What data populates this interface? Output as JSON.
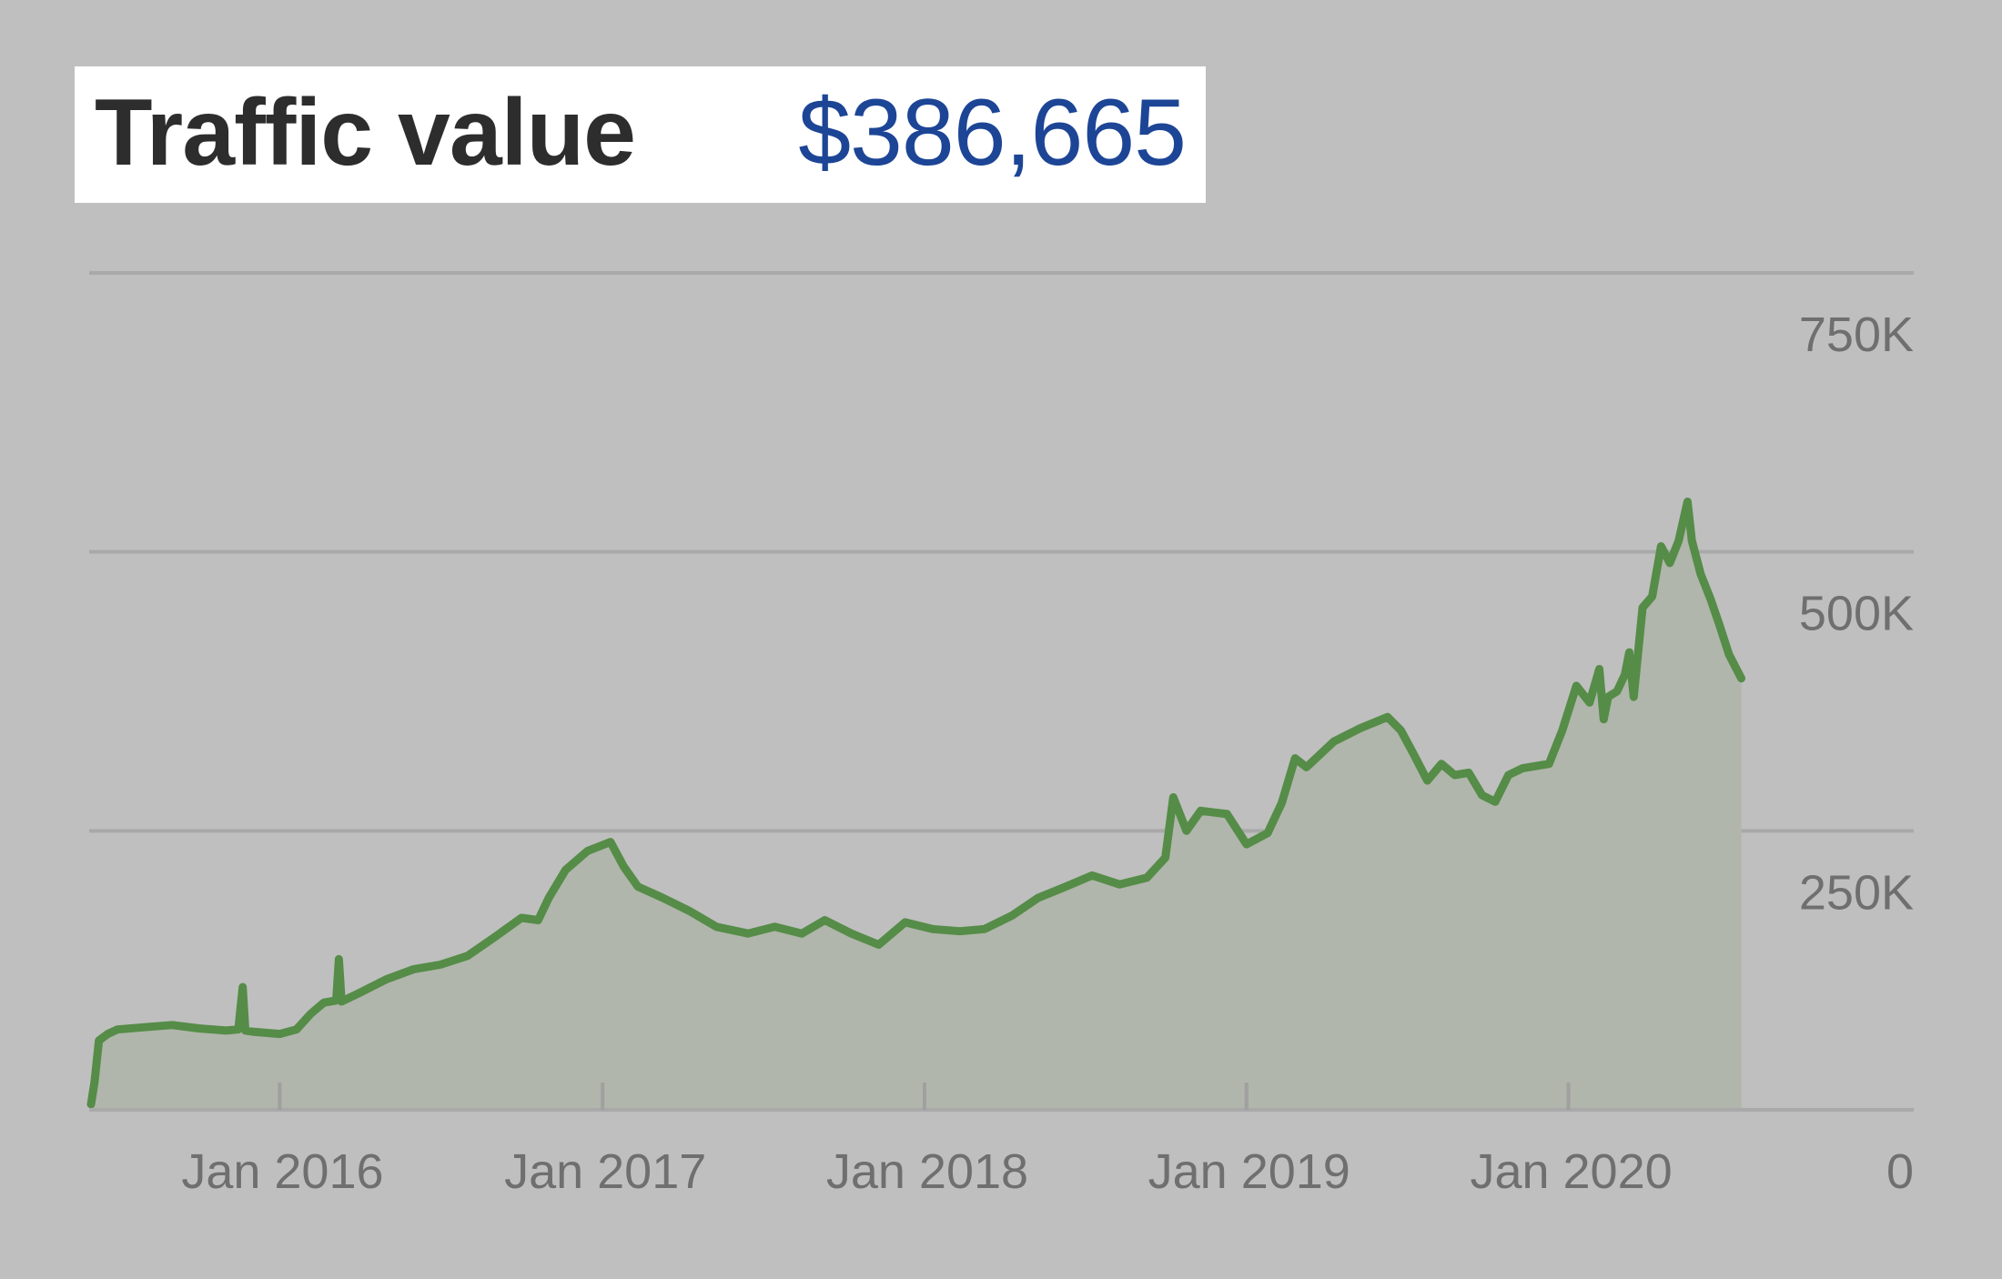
{
  "headline": {
    "label": "Traffic value",
    "value": "$386,665"
  },
  "colors": {
    "background": "#bfbfbf",
    "line": "#558c47",
    "area": "#b0b6ab",
    "headline_value": "#1d4596",
    "headline_label": "#2d2d2d",
    "grid": "#a9a9a9",
    "tick_label": "#6f6f6f"
  },
  "chart_data": {
    "type": "area",
    "title": "Traffic value",
    "xlabel": "",
    "ylabel": "",
    "grid": true,
    "legend": "none",
    "ylim": [
      0,
      750000
    ],
    "xlim": [
      "2015-06-01",
      "2020-08-01"
    ],
    "x_ticks": [
      {
        "date": "2016-01-01",
        "label": "Jan 2016"
      },
      {
        "date": "2017-01-01",
        "label": "Jan 2017"
      },
      {
        "date": "2018-01-01",
        "label": "Jan 2018"
      },
      {
        "date": "2019-01-01",
        "label": "Jan 2019"
      },
      {
        "date": "2020-01-01",
        "label": "Jan 2020"
      }
    ],
    "y_ticks": [
      {
        "value": 750000,
        "label": "750K"
      },
      {
        "value": 500000,
        "label": "500K"
      },
      {
        "value": 250000,
        "label": "250K"
      },
      {
        "value": 0,
        "label": "0"
      }
    ],
    "series": [
      {
        "name": "",
        "points": [
          [
            "2015-06-01",
            5000
          ],
          [
            "2015-06-05",
            25000
          ],
          [
            "2015-06-10",
            62000
          ],
          [
            "2015-06-20",
            68000
          ],
          [
            "2015-07-01",
            72000
          ],
          [
            "2015-08-01",
            74000
          ],
          [
            "2015-09-01",
            76000
          ],
          [
            "2015-10-01",
            73000
          ],
          [
            "2015-11-01",
            71000
          ],
          [
            "2015-11-15",
            72000
          ],
          [
            "2015-11-20",
            110000
          ],
          [
            "2015-11-23",
            71000
          ],
          [
            "2015-12-01",
            70000
          ],
          [
            "2016-01-01",
            68000
          ],
          [
            "2016-01-20",
            72000
          ],
          [
            "2016-02-05",
            86000
          ],
          [
            "2016-02-20",
            96000
          ],
          [
            "2016-03-05",
            98000
          ],
          [
            "2016-03-08",
            135000
          ],
          [
            "2016-03-11",
            97000
          ],
          [
            "2016-04-01",
            105000
          ],
          [
            "2016-05-01",
            117000
          ],
          [
            "2016-06-01",
            126000
          ],
          [
            "2016-07-01",
            130000
          ],
          [
            "2016-08-01",
            138000
          ],
          [
            "2016-09-01",
            155000
          ],
          [
            "2016-10-01",
            172000
          ],
          [
            "2016-10-20",
            170000
          ],
          [
            "2016-11-01",
            190000
          ],
          [
            "2016-11-20",
            215000
          ],
          [
            "2016-12-15",
            232000
          ],
          [
            "2017-01-10",
            240000
          ],
          [
            "2017-01-25",
            218000
          ],
          [
            "2017-02-10",
            200000
          ],
          [
            "2017-03-10",
            190000
          ],
          [
            "2017-04-10",
            178000
          ],
          [
            "2017-05-10",
            164000
          ],
          [
            "2017-06-15",
            158000
          ],
          [
            "2017-07-15",
            164000
          ],
          [
            "2017-08-15",
            158000
          ],
          [
            "2017-09-10",
            170000
          ],
          [
            "2017-10-10",
            158000
          ],
          [
            "2017-11-10",
            148000
          ],
          [
            "2017-12-10",
            168000
          ],
          [
            "2018-01-10",
            162000
          ],
          [
            "2018-02-10",
            160000
          ],
          [
            "2018-03-10",
            162000
          ],
          [
            "2018-04-10",
            174000
          ],
          [
            "2018-05-10",
            190000
          ],
          [
            "2018-06-10",
            200000
          ],
          [
            "2018-07-10",
            210000
          ],
          [
            "2018-08-10",
            202000
          ],
          [
            "2018-09-10",
            208000
          ],
          [
            "2018-10-01",
            226000
          ],
          [
            "2018-10-10",
            280000
          ],
          [
            "2018-10-25",
            250000
          ],
          [
            "2018-11-10",
            268000
          ],
          [
            "2018-12-10",
            265000
          ],
          [
            "2019-01-01",
            238000
          ],
          [
            "2019-01-25",
            248000
          ],
          [
            "2019-02-10",
            275000
          ],
          [
            "2019-02-25",
            315000
          ],
          [
            "2019-03-10",
            307000
          ],
          [
            "2019-04-10",
            330000
          ],
          [
            "2019-05-10",
            342000
          ],
          [
            "2019-06-10",
            352000
          ],
          [
            "2019-06-25",
            340000
          ],
          [
            "2019-07-10",
            318000
          ],
          [
            "2019-07-25",
            295000
          ],
          [
            "2019-08-10",
            310000
          ],
          [
            "2019-08-25",
            300000
          ],
          [
            "2019-09-10",
            302000
          ],
          [
            "2019-09-25",
            282000
          ],
          [
            "2019-10-10",
            276000
          ],
          [
            "2019-10-25",
            300000
          ],
          [
            "2019-11-10",
            306000
          ],
          [
            "2019-12-10",
            310000
          ],
          [
            "2019-12-25",
            340000
          ],
          [
            "2020-01-10",
            380000
          ],
          [
            "2020-01-25",
            365000
          ],
          [
            "2020-02-05",
            395000
          ],
          [
            "2020-02-10",
            350000
          ],
          [
            "2020-02-15",
            370000
          ],
          [
            "2020-02-25",
            375000
          ],
          [
            "2020-03-05",
            390000
          ],
          [
            "2020-03-10",
            410000
          ],
          [
            "2020-03-15",
            370000
          ],
          [
            "2020-03-25",
            450000
          ],
          [
            "2020-04-05",
            460000
          ],
          [
            "2020-04-15",
            505000
          ],
          [
            "2020-04-25",
            490000
          ],
          [
            "2020-05-05",
            510000
          ],
          [
            "2020-05-15",
            545000
          ],
          [
            "2020-05-20",
            510000
          ],
          [
            "2020-05-30",
            480000
          ],
          [
            "2020-06-10",
            458000
          ],
          [
            "2020-06-20",
            435000
          ],
          [
            "2020-07-01",
            408000
          ],
          [
            "2020-07-15",
            386665
          ]
        ]
      }
    ]
  }
}
